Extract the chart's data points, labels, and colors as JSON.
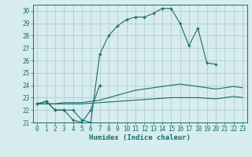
{
  "xlabel": "Humidex (Indice chaleur)",
  "background_color": "#d6ecee",
  "grid_color": "#b0cdd0",
  "line_color": "#1a6b6b",
  "xlim": [
    -0.5,
    23.5
  ],
  "ylim": [
    21,
    30.5
  ],
  "xticks": [
    0,
    1,
    2,
    3,
    4,
    5,
    6,
    7,
    8,
    9,
    10,
    11,
    12,
    13,
    14,
    15,
    16,
    17,
    18,
    19,
    20,
    21,
    22,
    23
  ],
  "yticks": [
    21,
    22,
    23,
    24,
    25,
    26,
    27,
    28,
    29,
    30
  ],
  "curves": [
    {
      "x": [
        0,
        1,
        2,
        3,
        4,
        5,
        6,
        7,
        8,
        9,
        10,
        11,
        12,
        13,
        14,
        15,
        16,
        17,
        18,
        19,
        20
      ],
      "y": [
        22.5,
        22.7,
        22.0,
        22.0,
        22.0,
        21.2,
        21.0,
        26.5,
        28.0,
        28.8,
        29.3,
        29.5,
        29.5,
        29.8,
        30.2,
        30.2,
        29.0,
        27.2,
        28.6,
        25.8,
        25.7
      ],
      "marker": true
    },
    {
      "x": [
        0,
        1,
        2,
        3,
        4,
        5,
        6,
        7
      ],
      "y": [
        22.5,
        22.7,
        22.0,
        22.0,
        21.2,
        21.0,
        22.0,
        24.0
      ],
      "marker": true
    },
    {
      "x": [
        0,
        1,
        2,
        3,
        4,
        5,
        6,
        7,
        8,
        9,
        10,
        11,
        12,
        13,
        14,
        15,
        16,
        17,
        18,
        19,
        20,
        21,
        22,
        23
      ],
      "y": [
        22.5,
        22.5,
        22.5,
        22.6,
        22.6,
        22.6,
        22.7,
        22.8,
        23.0,
        23.2,
        23.4,
        23.6,
        23.7,
        23.8,
        23.9,
        24.0,
        24.1,
        24.0,
        23.9,
        23.8,
        23.7,
        23.8,
        23.9,
        23.8
      ],
      "marker": false
    },
    {
      "x": [
        0,
        1,
        2,
        3,
        4,
        5,
        6,
        7,
        8,
        9,
        10,
        11,
        12,
        13,
        14,
        15,
        16,
        17,
        18,
        19,
        20,
        21,
        22,
        23
      ],
      "y": [
        22.5,
        22.5,
        22.5,
        22.5,
        22.5,
        22.5,
        22.55,
        22.6,
        22.65,
        22.7,
        22.75,
        22.8,
        22.85,
        22.9,
        22.95,
        23.0,
        23.0,
        23.0,
        23.0,
        22.95,
        22.9,
        23.0,
        23.1,
        23.0
      ],
      "marker": false
    }
  ]
}
